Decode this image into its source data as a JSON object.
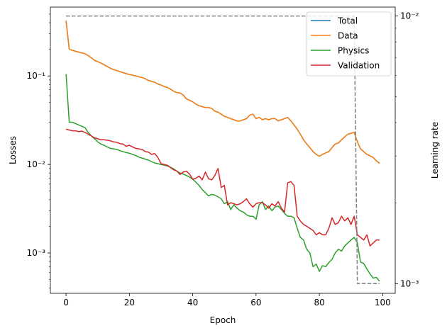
{
  "chart_data": {
    "type": "line",
    "xlabel": "Epoch",
    "ylabel": "Losses",
    "y2label": "Learning rate",
    "xlim": [
      -4.95,
      103.95
    ],
    "ylim": [
      0.00035,
      0.6
    ],
    "y2lim": [
      0.00092,
      0.0108
    ],
    "yscale": "log",
    "y2scale": "log",
    "grid": false,
    "legend_position": "top-right",
    "x_ticks": [
      0,
      20,
      40,
      60,
      80,
      100
    ],
    "x_tick_labels": [
      "0",
      "20",
      "40",
      "60",
      "80",
      "100"
    ],
    "y_ticks": [
      0.001,
      0.01,
      0.1
    ],
    "y_tick_labels": [
      "10⁻³",
      "10⁻²",
      "10⁻¹"
    ],
    "y2_ticks": [
      0.001,
      0.01
    ],
    "y2_tick_labels": [
      "10⁻³",
      "10⁻²"
    ],
    "series": [
      {
        "name": "Total",
        "color": "#1f77b4",
        "axis": "left",
        "x": [
          0,
          1,
          2,
          3,
          4,
          5,
          6,
          7,
          8,
          9,
          10,
          11,
          12,
          13,
          14,
          15,
          16,
          17,
          18,
          19,
          20,
          21,
          22,
          23,
          24,
          25,
          26,
          27,
          28,
          29,
          30,
          31,
          32,
          33,
          34,
          35,
          36,
          37,
          38,
          39,
          40,
          41,
          42,
          43,
          44,
          45,
          46,
          47,
          48,
          49,
          50,
          51,
          52,
          53,
          54,
          55,
          56,
          57,
          58,
          59,
          60,
          61,
          62,
          63,
          64,
          65,
          66,
          67,
          68,
          69,
          70,
          71,
          72,
          73,
          74,
          75,
          76,
          77,
          78,
          79,
          80,
          81,
          82,
          83,
          84,
          85,
          86,
          87,
          88,
          89,
          90,
          91,
          92,
          93,
          94,
          95,
          96,
          97,
          98,
          99
        ],
        "values": [
          0.42,
          0.2,
          0.195,
          0.19,
          0.186,
          0.182,
          0.178,
          0.17,
          0.16,
          0.15,
          0.145,
          0.14,
          0.134,
          0.128,
          0.122,
          0.118,
          0.115,
          0.112,
          0.109,
          0.106,
          0.104,
          0.102,
          0.1,
          0.098,
          0.096,
          0.093,
          0.089,
          0.087,
          0.085,
          0.081,
          0.079,
          0.076,
          0.074,
          0.071,
          0.067,
          0.065,
          0.064,
          0.061,
          0.055,
          0.053,
          0.051,
          0.048,
          0.046,
          0.045,
          0.044,
          0.044,
          0.043,
          0.04,
          0.039,
          0.037,
          0.035,
          0.034,
          0.033,
          0.032,
          0.031,
          0.031,
          0.032,
          0.033,
          0.036,
          0.037,
          0.033,
          0.034,
          0.032,
          0.033,
          0.032,
          0.033,
          0.033,
          0.031,
          0.032,
          0.033,
          0.034,
          0.031,
          0.028,
          0.025,
          0.022,
          0.019,
          0.017,
          0.0155,
          0.014,
          0.013,
          0.0124,
          0.013,
          0.0135,
          0.014,
          0.0155,
          0.017,
          0.0175,
          0.019,
          0.0205,
          0.022,
          0.0225,
          0.023,
          0.018,
          0.015,
          0.014,
          0.013,
          0.0125,
          0.012,
          0.011,
          0.0103
        ]
      },
      {
        "name": "Data",
        "color": "#ff7f0e",
        "axis": "left",
        "x": [
          0,
          1,
          2,
          3,
          4,
          5,
          6,
          7,
          8,
          9,
          10,
          11,
          12,
          13,
          14,
          15,
          16,
          17,
          18,
          19,
          20,
          21,
          22,
          23,
          24,
          25,
          26,
          27,
          28,
          29,
          30,
          31,
          32,
          33,
          34,
          35,
          36,
          37,
          38,
          39,
          40,
          41,
          42,
          43,
          44,
          45,
          46,
          47,
          48,
          49,
          50,
          51,
          52,
          53,
          54,
          55,
          56,
          57,
          58,
          59,
          60,
          61,
          62,
          63,
          64,
          65,
          66,
          67,
          68,
          69,
          70,
          71,
          72,
          73,
          74,
          75,
          76,
          77,
          78,
          79,
          80,
          81,
          82,
          83,
          84,
          85,
          86,
          87,
          88,
          89,
          90,
          91,
          92,
          93,
          94,
          95,
          96,
          97,
          98,
          99
        ],
        "values": [
          0.42,
          0.2,
          0.195,
          0.19,
          0.186,
          0.182,
          0.178,
          0.17,
          0.16,
          0.15,
          0.145,
          0.14,
          0.134,
          0.128,
          0.122,
          0.118,
          0.115,
          0.112,
          0.109,
          0.106,
          0.104,
          0.102,
          0.1,
          0.098,
          0.096,
          0.093,
          0.089,
          0.087,
          0.085,
          0.081,
          0.079,
          0.076,
          0.074,
          0.071,
          0.067,
          0.065,
          0.064,
          0.061,
          0.055,
          0.053,
          0.051,
          0.048,
          0.046,
          0.045,
          0.044,
          0.044,
          0.043,
          0.04,
          0.039,
          0.037,
          0.035,
          0.034,
          0.033,
          0.032,
          0.031,
          0.031,
          0.032,
          0.033,
          0.036,
          0.037,
          0.033,
          0.034,
          0.032,
          0.033,
          0.032,
          0.033,
          0.033,
          0.031,
          0.032,
          0.033,
          0.034,
          0.031,
          0.028,
          0.025,
          0.022,
          0.019,
          0.017,
          0.0155,
          0.014,
          0.013,
          0.0124,
          0.013,
          0.0135,
          0.014,
          0.0155,
          0.017,
          0.0175,
          0.019,
          0.0205,
          0.022,
          0.0225,
          0.023,
          0.018,
          0.015,
          0.014,
          0.013,
          0.0125,
          0.012,
          0.011,
          0.0103
        ]
      },
      {
        "name": "Physics",
        "color": "#2ca02c",
        "axis": "left",
        "x": [
          0,
          1,
          2,
          3,
          4,
          5,
          6,
          7,
          8,
          9,
          10,
          11,
          12,
          13,
          14,
          15,
          16,
          17,
          18,
          19,
          20,
          21,
          22,
          23,
          24,
          25,
          26,
          27,
          28,
          29,
          30,
          31,
          32,
          33,
          34,
          35,
          36,
          37,
          38,
          39,
          40,
          41,
          42,
          43,
          44,
          45,
          46,
          47,
          48,
          49,
          50,
          51,
          52,
          53,
          54,
          55,
          56,
          57,
          58,
          59,
          60,
          61,
          62,
          63,
          64,
          65,
          66,
          67,
          68,
          69,
          70,
          71,
          72,
          73,
          74,
          75,
          76,
          77,
          78,
          79,
          80,
          81,
          82,
          83,
          84,
          85,
          86,
          87,
          88,
          89,
          90,
          91,
          92,
          93,
          94,
          95,
          96,
          97,
          98,
          99
        ],
        "values": [
          0.105,
          0.03,
          0.03,
          0.029,
          0.028,
          0.027,
          0.026,
          0.023,
          0.021,
          0.0195,
          0.018,
          0.017,
          0.0165,
          0.0158,
          0.0152,
          0.015,
          0.0148,
          0.0143,
          0.014,
          0.0136,
          0.0134,
          0.013,
          0.0126,
          0.0121,
          0.0118,
          0.0115,
          0.0112,
          0.0108,
          0.0104,
          0.0102,
          0.01,
          0.0098,
          0.0096,
          0.0093,
          0.0089,
          0.0084,
          0.008,
          0.0078,
          0.0075,
          0.0072,
          0.0068,
          0.0063,
          0.0058,
          0.0052,
          0.0048,
          0.0044,
          0.0046,
          0.0045,
          0.0043,
          0.0041,
          0.0036,
          0.0038,
          0.0031,
          0.0035,
          0.0032,
          0.003,
          0.0029,
          0.0027,
          0.0026,
          0.0026,
          0.0024,
          0.0035,
          0.0038,
          0.0031,
          0.0034,
          0.003,
          0.0033,
          0.0034,
          0.0031,
          0.0028,
          0.0026,
          0.0026,
          0.0025,
          0.0019,
          0.0015,
          0.0014,
          0.0011,
          0.001,
          0.0007,
          0.00075,
          0.00062,
          0.00072,
          0.0007,
          0.00078,
          0.00085,
          0.001,
          0.0011,
          0.00105,
          0.0012,
          0.0013,
          0.0014,
          0.0015,
          0.0013,
          0.00079,
          0.00076,
          0.00066,
          0.00058,
          0.00052,
          0.00053,
          0.00048
        ]
      },
      {
        "name": "Validation",
        "color": "#d62728",
        "axis": "left",
        "x": [
          0,
          1,
          2,
          3,
          4,
          5,
          6,
          7,
          8,
          9,
          10,
          11,
          12,
          13,
          14,
          15,
          16,
          17,
          18,
          19,
          20,
          21,
          22,
          23,
          24,
          25,
          26,
          27,
          28,
          29,
          30,
          31,
          32,
          33,
          34,
          35,
          36,
          37,
          38,
          39,
          40,
          41,
          42,
          43,
          44,
          45,
          46,
          47,
          48,
          49,
          50,
          51,
          52,
          53,
          54,
          55,
          56,
          57,
          58,
          59,
          60,
          61,
          62,
          63,
          64,
          65,
          66,
          67,
          68,
          69,
          70,
          71,
          72,
          73,
          74,
          75,
          76,
          77,
          78,
          79,
          80,
          81,
          82,
          83,
          84,
          85,
          86,
          87,
          88,
          89,
          90,
          91,
          92,
          93,
          94,
          95,
          96,
          97,
          98,
          99
        ],
        "values": [
          0.025,
          0.0245,
          0.024,
          0.024,
          0.0235,
          0.0238,
          0.023,
          0.022,
          0.021,
          0.02,
          0.0195,
          0.019,
          0.019,
          0.0188,
          0.0185,
          0.018,
          0.0178,
          0.0172,
          0.017,
          0.016,
          0.0165,
          0.0158,
          0.0152,
          0.015,
          0.0148,
          0.014,
          0.0138,
          0.013,
          0.0133,
          0.012,
          0.0102,
          0.01,
          0.0098,
          0.0092,
          0.0087,
          0.0084,
          0.0077,
          0.0082,
          0.0084,
          0.0078,
          0.0068,
          0.007,
          0.0074,
          0.0067,
          0.0082,
          0.0069,
          0.0067,
          0.0075,
          0.009,
          0.0055,
          0.0058,
          0.0035,
          0.0037,
          0.0036,
          0.0035,
          0.0036,
          0.0038,
          0.0041,
          0.0036,
          0.0033,
          0.0036,
          0.0037,
          0.0037,
          0.0035,
          0.0032,
          0.0036,
          0.0034,
          0.0038,
          0.0032,
          0.0029,
          0.0062,
          0.0064,
          0.0058,
          0.0026,
          0.0023,
          0.0021,
          0.002,
          0.0019,
          0.0018,
          0.0016,
          0.0017,
          0.0016,
          0.0016,
          0.0019,
          0.0025,
          0.0021,
          0.0022,
          0.0026,
          0.0023,
          0.0025,
          0.0021,
          0.0026,
          0.0016,
          0.0015,
          0.0014,
          0.0016,
          0.0012,
          0.0013,
          0.0014,
          0.0014
        ]
      },
      {
        "name": "",
        "color": "#808080",
        "axis": "right",
        "style": "dashed",
        "x": [
          0,
          91,
          92,
          99
        ],
        "values": [
          0.01,
          0.01,
          0.001,
          0.001
        ]
      }
    ]
  }
}
